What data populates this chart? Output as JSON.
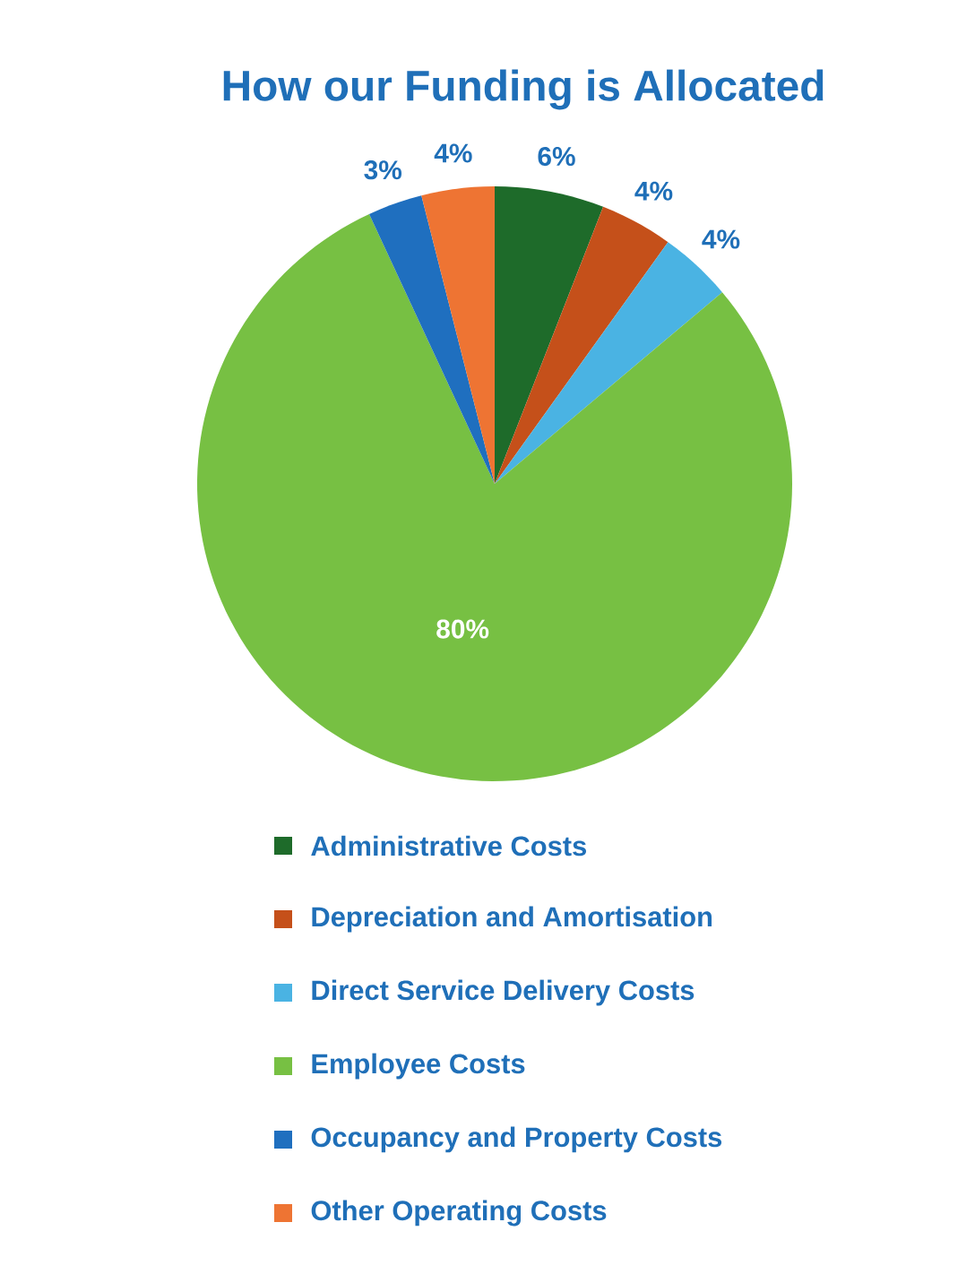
{
  "chart_data": {
    "type": "pie",
    "title": "How our Funding is Allocated",
    "categories": [
      "Administrative Costs",
      "Depreciation and Amortisation",
      "Direct Service Delivery Costs",
      "Employee Costs",
      "Occupancy and Property Costs",
      "Other Operating Costs"
    ],
    "values": [
      6,
      4,
      4,
      80,
      3,
      4
    ],
    "value_labels": [
      "6%",
      "4%",
      "4%",
      "80%",
      "3%",
      "4%"
    ],
    "colors": [
      "#1e6b2a",
      "#c5501a",
      "#4ab3e3",
      "#77c043",
      "#1f6fbf",
      "#ee7433"
    ],
    "legend": "bottom"
  }
}
